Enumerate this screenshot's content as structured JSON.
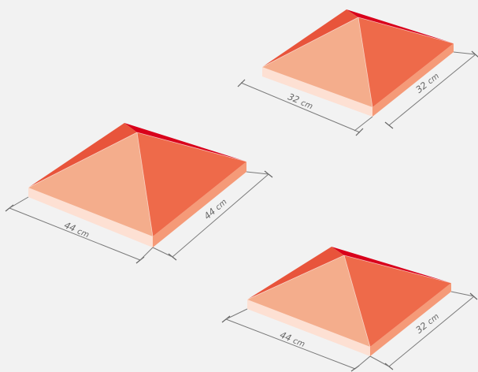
{
  "colors": {
    "face_front": "#f4ad8c",
    "face_right": "#ee6a4a",
    "face_left": "#e8543b",
    "face_back": "#d9001b",
    "base_front": "#fde0d3",
    "base_right": "#f59a78",
    "dimension": "#6e6e6e"
  },
  "caps": [
    {
      "id": "cap-top",
      "size_left": "32",
      "size_right": "32",
      "unit": "cm"
    },
    {
      "id": "cap-middle",
      "size_left": "44",
      "size_right": "44",
      "unit": "cm"
    },
    {
      "id": "cap-bottom",
      "size_left": "44",
      "size_right": "32",
      "unit": "cm"
    }
  ]
}
